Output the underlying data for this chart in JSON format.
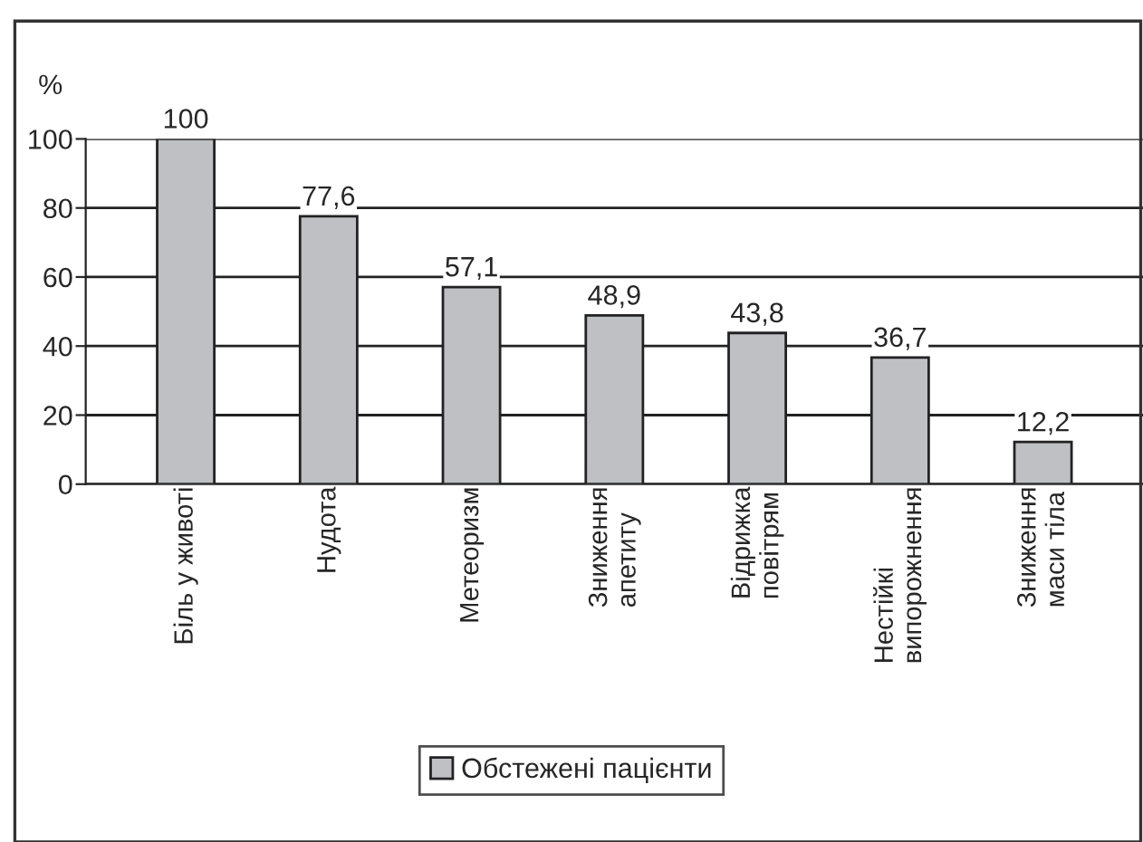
{
  "chart_data": {
    "type": "bar",
    "ylabel": "%",
    "categories": [
      "Біль у животі",
      "Нудота",
      "Метеоризм",
      "Зниження\nапетиту",
      "Відрижка\nповітрям",
      "Нестійкі\nвипорожнення",
      "Зниження\nмаси тіла"
    ],
    "series": [
      {
        "name": "Обстежені пацієнти",
        "color": "#bfc0c4",
        "values": [
          100,
          77.6,
          57.1,
          48.9,
          43.8,
          36.7,
          12.2
        ]
      }
    ],
    "value_labels": [
      "100",
      "77,6",
      "57,1",
      "48,9",
      "43,8",
      "36,7",
      "12,2"
    ],
    "ylim": [
      0,
      100
    ],
    "yticks": [
      0,
      20,
      40,
      60,
      80,
      100
    ],
    "grid": "y",
    "legend": "bottom"
  }
}
